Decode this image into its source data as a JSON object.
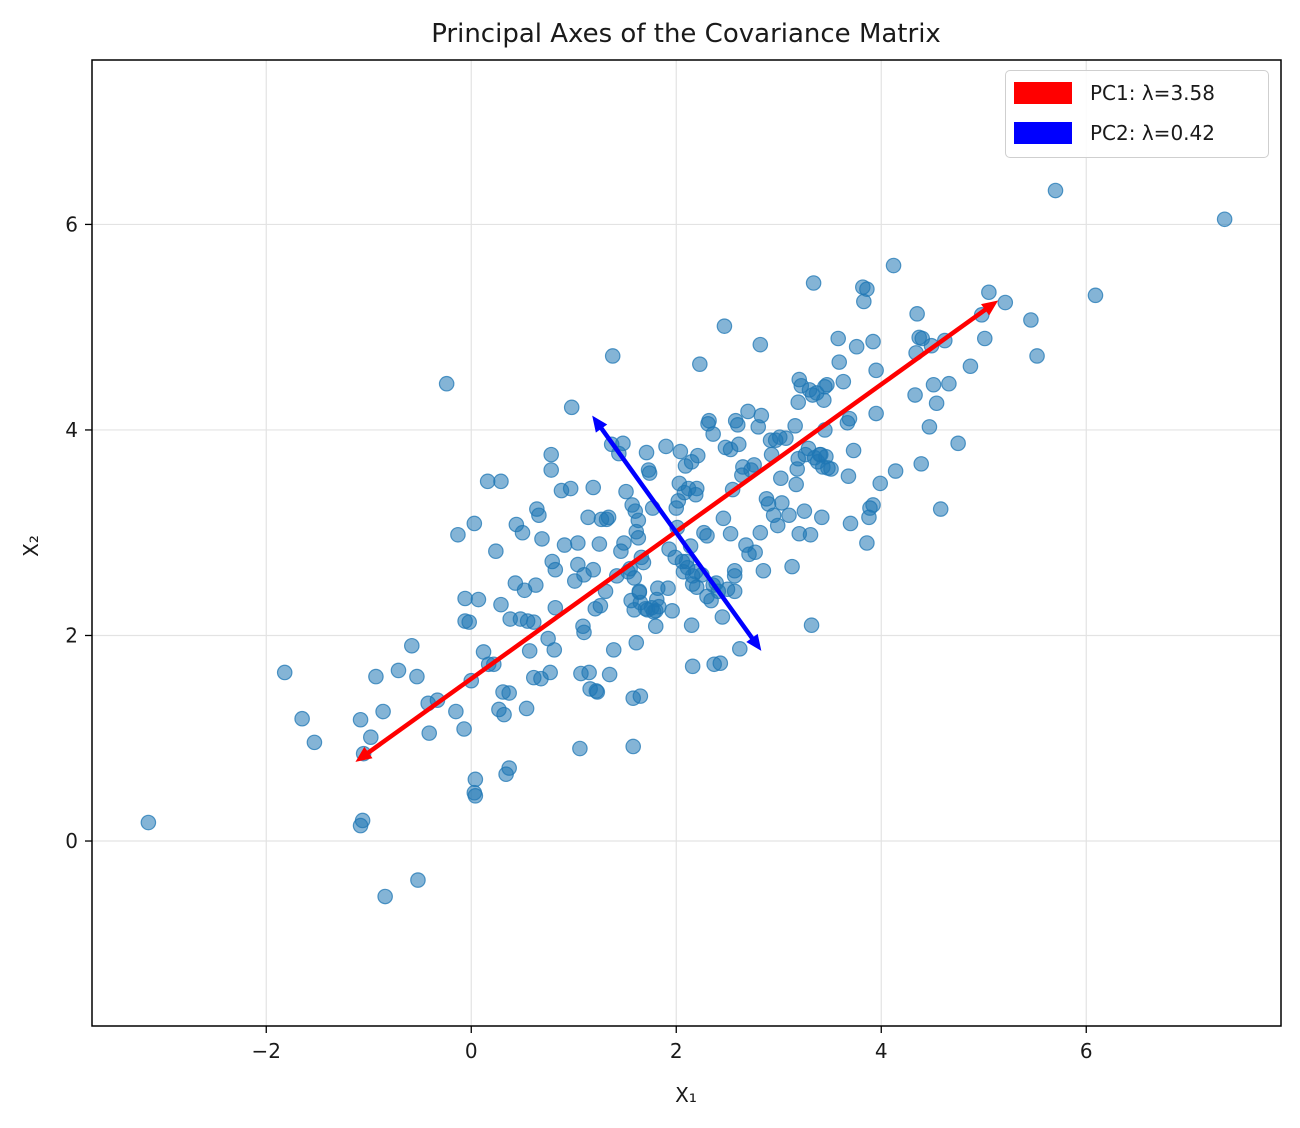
{
  "chart_data": {
    "type": "scatter",
    "title": "Principal Axes of the Covariance Matrix",
    "xlabel": "X₁",
    "ylabel": "X₂",
    "xlim": [
      -3.7,
      7.9
    ],
    "ylim": [
      -1.8,
      7.6
    ],
    "xticks": [
      -2,
      0,
      2,
      4,
      6
    ],
    "yticks": [
      0,
      2,
      4,
      6
    ],
    "xtick_labels": [
      "−2",
      "0",
      "2",
      "4",
      "6"
    ],
    "ytick_labels": [
      "0",
      "2",
      "4",
      "6"
    ],
    "grid": true,
    "legend_position": "top-right",
    "point_color": "#1f77b4",
    "points": [
      [
        -3.15,
        0.18
      ],
      [
        -1.82,
        1.64
      ],
      [
        -1.65,
        1.19
      ],
      [
        -1.53,
        0.96
      ],
      [
        -1.08,
        0.15
      ],
      [
        -1.06,
        0.2
      ],
      [
        -1.05,
        0.85
      ],
      [
        -1.08,
        1.18
      ],
      [
        -0.98,
        1.01
      ],
      [
        -0.93,
        1.6
      ],
      [
        -0.86,
        1.26
      ],
      [
        -0.84,
        -0.54
      ],
      [
        -0.71,
        1.66
      ],
      [
        -0.58,
        1.9
      ],
      [
        -0.53,
        1.6
      ],
      [
        -0.52,
        -0.38
      ],
      [
        -0.42,
        1.34
      ],
      [
        -0.41,
        1.05
      ],
      [
        -0.33,
        1.37
      ],
      [
        -0.24,
        4.45
      ],
      [
        -0.15,
        1.26
      ],
      [
        -0.13,
        2.98
      ],
      [
        -0.07,
        1.09
      ],
      [
        -0.06,
        2.14
      ],
      [
        -0.06,
        2.36
      ],
      [
        -0.02,
        2.13
      ],
      [
        0.0,
        1.56
      ],
      [
        0.03,
        3.09
      ],
      [
        0.03,
        0.47
      ],
      [
        0.04,
        0.6
      ],
      [
        0.04,
        0.44
      ],
      [
        0.07,
        2.35
      ],
      [
        0.12,
        1.84
      ],
      [
        0.16,
        3.5
      ],
      [
        0.17,
        1.72
      ],
      [
        0.22,
        1.72
      ],
      [
        0.24,
        2.82
      ],
      [
        0.27,
        1.28
      ],
      [
        0.29,
        3.5
      ],
      [
        0.29,
        2.3
      ],
      [
        0.31,
        1.45
      ],
      [
        0.32,
        1.23
      ],
      [
        0.34,
        0.65
      ],
      [
        0.37,
        1.44
      ],
      [
        0.37,
        0.71
      ],
      [
        0.38,
        2.16
      ],
      [
        0.43,
        2.51
      ],
      [
        0.44,
        3.08
      ],
      [
        0.48,
        2.16
      ],
      [
        0.5,
        3.0
      ],
      [
        0.52,
        2.44
      ],
      [
        0.54,
        1.29
      ],
      [
        0.55,
        2.14
      ],
      [
        0.57,
        1.85
      ],
      [
        0.61,
        2.13
      ],
      [
        0.61,
        1.59
      ],
      [
        0.63,
        2.49
      ],
      [
        0.64,
        3.23
      ],
      [
        0.66,
        3.17
      ],
      [
        0.68,
        1.58
      ],
      [
        0.69,
        2.94
      ],
      [
        0.75,
        1.97
      ],
      [
        0.77,
        1.64
      ],
      [
        0.78,
        3.76
      ],
      [
        0.78,
        3.61
      ],
      [
        0.79,
        2.72
      ],
      [
        0.81,
        1.86
      ],
      [
        0.82,
        2.27
      ],
      [
        0.82,
        2.64
      ],
      [
        0.88,
        3.41
      ],
      [
        0.91,
        2.88
      ],
      [
        0.97,
        3.43
      ],
      [
        0.98,
        4.22
      ],
      [
        1.01,
        2.53
      ],
      [
        1.04,
        2.9
      ],
      [
        1.04,
        2.69
      ],
      [
        1.06,
        0.9
      ],
      [
        1.07,
        1.63
      ],
      [
        1.09,
        2.09
      ],
      [
        1.1,
        2.03
      ],
      [
        1.1,
        2.59
      ],
      [
        1.14,
        3.15
      ],
      [
        1.15,
        1.64
      ],
      [
        1.16,
        1.48
      ],
      [
        1.19,
        2.64
      ],
      [
        1.19,
        3.44
      ],
      [
        1.21,
        2.26
      ],
      [
        1.22,
        1.46
      ],
      [
        1.23,
        1.45
      ],
      [
        1.25,
        2.89
      ],
      [
        1.26,
        2.29
      ],
      [
        1.27,
        3.13
      ],
      [
        1.31,
        2.43
      ],
      [
        1.32,
        3.13
      ],
      [
        1.34,
        3.15
      ],
      [
        1.35,
        1.62
      ],
      [
        1.37,
        3.86
      ],
      [
        1.39,
        1.86
      ],
      [
        1.38,
        4.72
      ],
      [
        1.42,
        2.58
      ],
      [
        1.44,
        3.77
      ],
      [
        1.46,
        2.82
      ],
      [
        1.48,
        3.87
      ],
      [
        1.49,
        2.9
      ],
      [
        1.51,
        3.4
      ],
      [
        1.53,
        2.62
      ],
      [
        1.55,
        2.65
      ],
      [
        1.56,
        2.34
      ],
      [
        1.57,
        3.27
      ],
      [
        1.58,
        1.39
      ],
      [
        1.58,
        0.92
      ],
      [
        1.59,
        2.56
      ],
      [
        1.59,
        2.25
      ],
      [
        1.6,
        3.21
      ],
      [
        1.61,
        1.93
      ],
      [
        1.61,
        3.01
      ],
      [
        1.63,
        3.12
      ],
      [
        1.63,
        2.95
      ],
      [
        1.64,
        2.43
      ],
      [
        1.64,
        2.42
      ],
      [
        1.65,
        2.32
      ],
      [
        1.65,
        1.41
      ],
      [
        1.66,
        2.76
      ],
      [
        1.68,
        2.71
      ],
      [
        1.7,
        2.26
      ],
      [
        1.71,
        3.78
      ],
      [
        1.72,
        2.25
      ],
      [
        1.73,
        3.61
      ],
      [
        1.74,
        3.58
      ],
      [
        1.76,
        2.27
      ],
      [
        1.77,
        3.24
      ],
      [
        1.78,
        2.23
      ],
      [
        1.8,
        2.09
      ],
      [
        1.8,
        2.24
      ],
      [
        1.81,
        2.35
      ],
      [
        1.82,
        2.46
      ],
      [
        1.83,
        2.28
      ],
      [
        1.9,
        3.84
      ],
      [
        1.92,
        2.46
      ],
      [
        1.93,
        2.84
      ],
      [
        1.96,
        2.24
      ],
      [
        1.99,
        2.76
      ],
      [
        2.0,
        3.24
      ],
      [
        2.01,
        3.05
      ],
      [
        2.02,
        3.31
      ],
      [
        2.03,
        3.48
      ],
      [
        2.04,
        3.79
      ],
      [
        2.06,
        2.72
      ],
      [
        2.07,
        2.62
      ],
      [
        2.08,
        3.39
      ],
      [
        2.09,
        3.65
      ],
      [
        2.1,
        2.72
      ],
      [
        2.11,
        2.66
      ],
      [
        2.12,
        3.43
      ],
      [
        2.14,
        2.87
      ],
      [
        2.15,
        3.69
      ],
      [
        2.15,
        2.1
      ],
      [
        2.16,
        1.7
      ],
      [
        2.16,
        2.5
      ],
      [
        2.16,
        2.58
      ],
      [
        2.19,
        3.37
      ],
      [
        2.19,
        2.62
      ],
      [
        2.2,
        3.43
      ],
      [
        2.2,
        2.47
      ],
      [
        2.21,
        3.75
      ],
      [
        2.23,
        4.64
      ],
      [
        2.25,
        2.59
      ],
      [
        2.27,
        3.0
      ],
      [
        2.3,
        2.97
      ],
      [
        2.3,
        2.38
      ],
      [
        2.31,
        4.06
      ],
      [
        2.32,
        4.09
      ],
      [
        2.34,
        2.34
      ],
      [
        2.36,
        2.49
      ],
      [
        2.36,
        3.96
      ],
      [
        2.37,
        1.72
      ],
      [
        2.39,
        2.51
      ],
      [
        2.41,
        2.43
      ],
      [
        2.43,
        1.73
      ],
      [
        2.45,
        2.18
      ],
      [
        2.46,
        3.14
      ],
      [
        2.47,
        5.01
      ],
      [
        2.48,
        3.83
      ],
      [
        2.5,
        2.45
      ],
      [
        2.53,
        3.81
      ],
      [
        2.53,
        2.99
      ],
      [
        2.55,
        3.42
      ],
      [
        2.57,
        2.43
      ],
      [
        2.57,
        2.63
      ],
      [
        2.57,
        2.58
      ],
      [
        2.58,
        4.09
      ],
      [
        2.6,
        4.05
      ],
      [
        2.61,
        3.86
      ],
      [
        2.62,
        1.87
      ],
      [
        2.64,
        3.56
      ],
      [
        2.65,
        3.64
      ],
      [
        2.68,
        2.88
      ],
      [
        2.7,
        4.18
      ],
      [
        2.71,
        2.79
      ],
      [
        2.73,
        3.61
      ],
      [
        2.76,
        3.66
      ],
      [
        2.77,
        2.81
      ],
      [
        2.8,
        4.03
      ],
      [
        2.82,
        4.83
      ],
      [
        2.82,
        3.0
      ],
      [
        2.83,
        4.14
      ],
      [
        2.85,
        2.63
      ],
      [
        2.88,
        3.33
      ],
      [
        2.9,
        3.28
      ],
      [
        2.92,
        3.9
      ],
      [
        2.93,
        3.76
      ],
      [
        2.95,
        3.17
      ],
      [
        2.97,
        3.9
      ],
      [
        2.99,
        3.07
      ],
      [
        3.01,
        3.93
      ],
      [
        3.02,
        3.53
      ],
      [
        3.03,
        3.29
      ],
      [
        3.07,
        3.92
      ],
      [
        3.1,
        3.17
      ],
      [
        3.13,
        2.67
      ],
      [
        3.16,
        4.04
      ],
      [
        3.17,
        3.47
      ],
      [
        3.18,
        3.62
      ],
      [
        3.19,
        3.72
      ],
      [
        3.19,
        4.27
      ],
      [
        3.2,
        4.49
      ],
      [
        3.2,
        2.99
      ],
      [
        3.22,
        4.43
      ],
      [
        3.25,
        3.21
      ],
      [
        3.26,
        3.76
      ],
      [
        3.29,
        3.82
      ],
      [
        3.3,
        4.39
      ],
      [
        3.31,
        2.98
      ],
      [
        3.32,
        2.1
      ],
      [
        3.33,
        4.34
      ],
      [
        3.34,
        5.43
      ],
      [
        3.35,
        3.73
      ],
      [
        3.37,
        4.36
      ],
      [
        3.38,
        3.69
      ],
      [
        3.4,
        3.76
      ],
      [
        3.41,
        3.76
      ],
      [
        3.42,
        3.15
      ],
      [
        3.43,
        3.64
      ],
      [
        3.44,
        4.29
      ],
      [
        3.45,
        4.42
      ],
      [
        3.45,
        4.0
      ],
      [
        3.46,
        3.74
      ],
      [
        3.47,
        4.44
      ],
      [
        3.48,
        3.63
      ],
      [
        3.51,
        3.62
      ],
      [
        3.58,
        4.89
      ],
      [
        3.59,
        4.66
      ],
      [
        3.63,
        4.47
      ],
      [
        3.67,
        4.07
      ],
      [
        3.68,
        3.55
      ],
      [
        3.69,
        4.11
      ],
      [
        3.7,
        3.09
      ],
      [
        3.73,
        3.8
      ],
      [
        3.76,
        4.81
      ],
      [
        3.82,
        5.39
      ],
      [
        3.83,
        5.25
      ],
      [
        3.86,
        5.37
      ],
      [
        3.86,
        2.9
      ],
      [
        3.88,
        3.15
      ],
      [
        3.89,
        3.24
      ],
      [
        3.92,
        4.86
      ],
      [
        3.92,
        3.27
      ],
      [
        3.95,
        4.58
      ],
      [
        3.95,
        4.16
      ],
      [
        3.99,
        3.48
      ],
      [
        4.12,
        5.6
      ],
      [
        4.14,
        3.6
      ],
      [
        4.33,
        4.34
      ],
      [
        4.34,
        4.75
      ],
      [
        4.35,
        5.13
      ],
      [
        4.37,
        4.9
      ],
      [
        4.39,
        3.67
      ],
      [
        4.4,
        4.89
      ],
      [
        4.47,
        4.03
      ],
      [
        4.49,
        4.82
      ],
      [
        4.51,
        4.44
      ],
      [
        4.54,
        4.26
      ],
      [
        4.58,
        3.23
      ],
      [
        4.62,
        4.87
      ],
      [
        4.66,
        4.45
      ],
      [
        4.75,
        3.87
      ],
      [
        4.87,
        4.62
      ],
      [
        4.98,
        5.12
      ],
      [
        5.01,
        4.89
      ],
      [
        5.05,
        5.34
      ],
      [
        5.21,
        5.24
      ],
      [
        5.46,
        5.07
      ],
      [
        5.52,
        4.72
      ],
      [
        5.7,
        6.33
      ],
      [
        6.09,
        5.31
      ],
      [
        7.35,
        6.05
      ]
    ],
    "arrows": [
      {
        "name": "PC1: λ=3.58",
        "color": "#ff0000",
        "from": [
          -1.13,
          0.77
        ],
        "to": [
          5.14,
          5.26
        ]
      },
      {
        "name": "PC2: λ=0.42",
        "color": "#0000ff",
        "from": [
          1.18,
          4.14
        ],
        "to": [
          2.83,
          1.85
        ]
      }
    ]
  }
}
